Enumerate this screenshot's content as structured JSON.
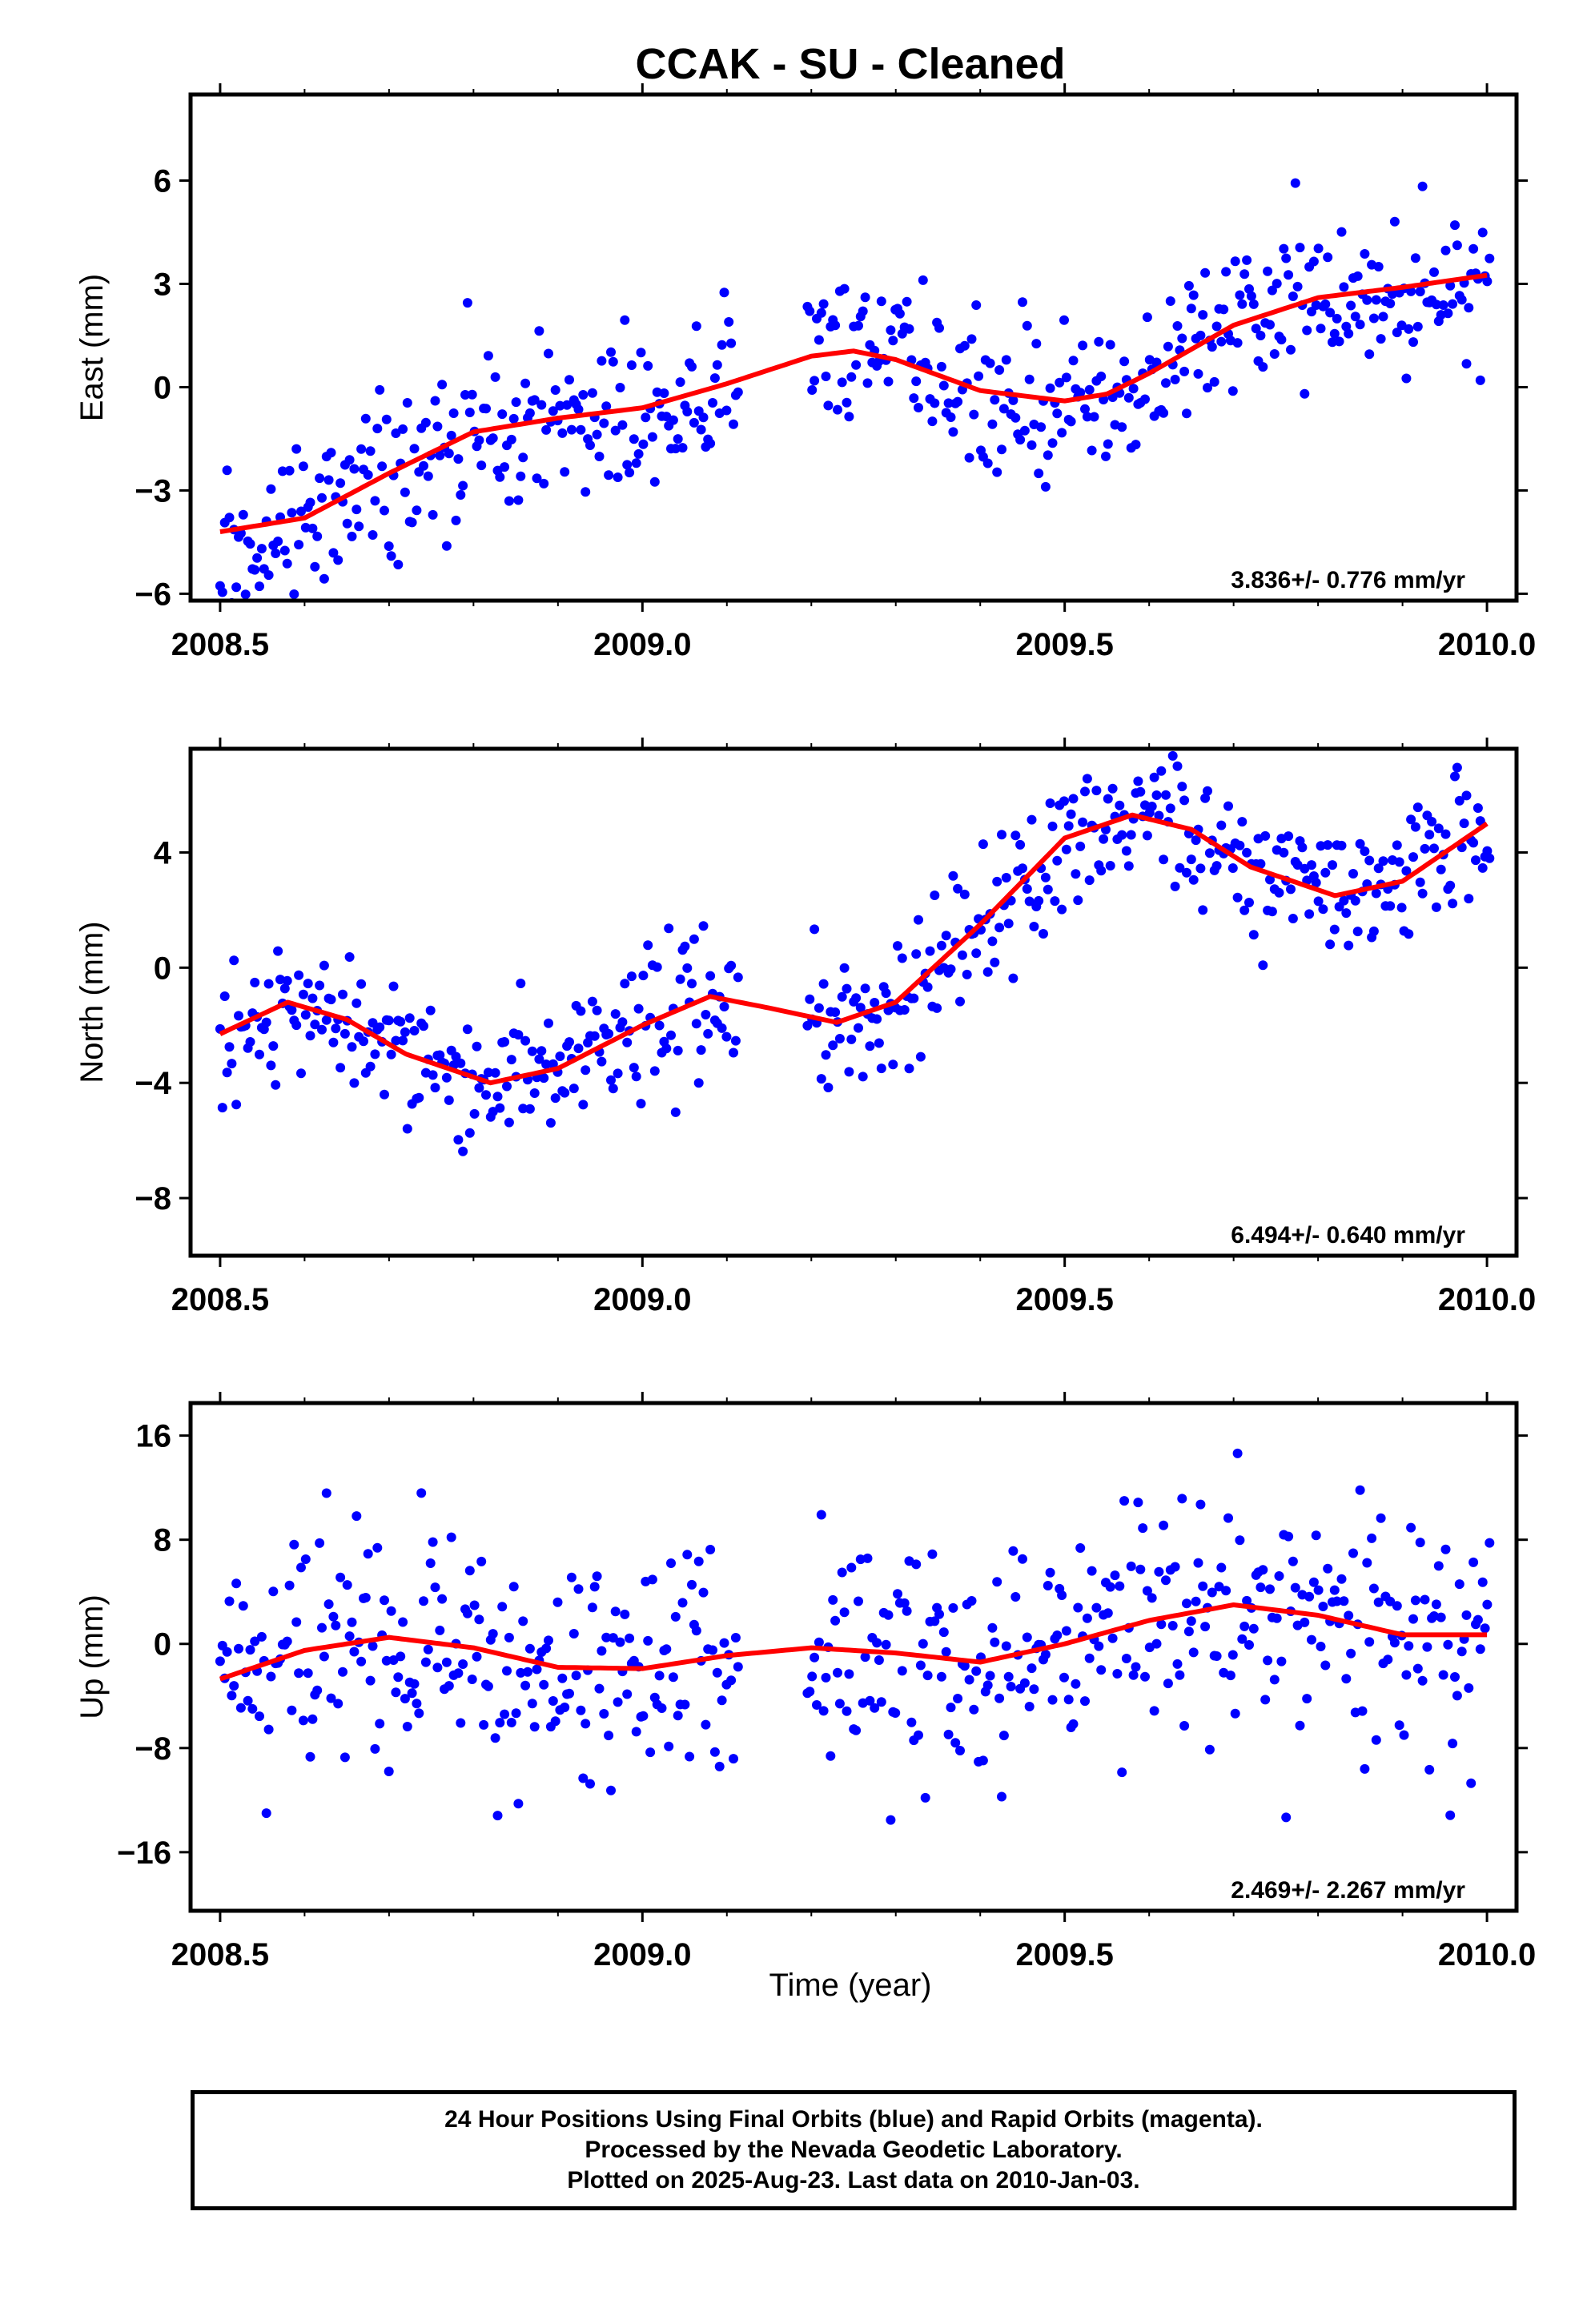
{
  "chart_data": {
    "title": "CCAK  - SU - Cleaned",
    "xlabel": "Time (year)",
    "x_ticks": [
      2008.5,
      2009.0,
      2009.5,
      2010.0
    ],
    "x_tick_labels": [
      "2008.5",
      "2009.0",
      "2009.5",
      "2010.0"
    ],
    "xlim": [
      2008.465,
      2010.035
    ],
    "colors": {
      "points": "#0000ff",
      "fit": "#ff0000",
      "frame": "#000000"
    },
    "panels": [
      {
        "name": "east",
        "type": "scatter",
        "ylabel": "East (mm)",
        "ylim": [
          -6.2,
          8.5
        ],
        "y_ticks": [
          -6,
          -3,
          0,
          3,
          6
        ],
        "y_tick_labels": [
          "−6",
          "−3",
          "0",
          "3",
          "6"
        ],
        "rate_text": "3.836+/- 0.776 mm/yr",
        "fit_line": {
          "x": [
            2008.5,
            2008.6,
            2008.7,
            2008.8,
            2008.9,
            2009.0,
            2009.1,
            2009.2,
            2009.25,
            2009.3,
            2009.4,
            2009.5,
            2009.55,
            2009.6,
            2009.7,
            2009.8,
            2009.9,
            2010.0
          ],
          "y": [
            -4.2,
            -3.8,
            -2.5,
            -1.3,
            -0.9,
            -0.6,
            0.1,
            0.9,
            1.05,
            0.8,
            -0.1,
            -0.4,
            -0.2,
            0.4,
            1.8,
            2.6,
            2.9,
            3.25
          ]
        }
      },
      {
        "name": "north",
        "type": "scatter",
        "ylabel": "North (mm)",
        "ylim": [
          -10,
          7.6
        ],
        "y_ticks": [
          -8,
          -4,
          0,
          4
        ],
        "y_tick_labels": [
          "−8",
          "−4",
          "0",
          "4"
        ],
        "rate_text": "6.494+/- 0.640 mm/yr",
        "fit_line": {
          "x": [
            2008.5,
            2008.58,
            2008.65,
            2008.72,
            2008.82,
            2008.9,
            2009.0,
            2009.08,
            2009.15,
            2009.23,
            2009.3,
            2009.4,
            2009.5,
            2009.58,
            2009.65,
            2009.72,
            2009.82,
            2009.9,
            2010.0
          ],
          "y": [
            -2.3,
            -1.2,
            -1.8,
            -3.0,
            -4.0,
            -3.5,
            -2.0,
            -1.0,
            -1.4,
            -1.9,
            -1.2,
            1.5,
            4.5,
            5.3,
            4.8,
            3.5,
            2.5,
            3.0,
            5.0
          ]
        }
      },
      {
        "name": "up",
        "type": "scatter",
        "ylabel": "Up (mm)",
        "ylim": [
          -20.5,
          18.5
        ],
        "y_ticks": [
          -16,
          -8,
          0,
          8,
          16
        ],
        "y_tick_labels": [
          "−16",
          "−8",
          "0",
          "8",
          "16"
        ],
        "rate_text": "2.469+/- 2.267 mm/yr",
        "fit_line": {
          "x": [
            2008.5,
            2008.6,
            2008.7,
            2008.8,
            2008.9,
            2009.0,
            2009.1,
            2009.2,
            2009.3,
            2009.4,
            2009.5,
            2009.6,
            2009.7,
            2009.8,
            2009.9,
            2010.0
          ],
          "y": [
            -2.7,
            -0.5,
            0.5,
            -0.3,
            -1.8,
            -1.9,
            -0.9,
            -0.3,
            -0.7,
            -1.4,
            0.0,
            1.8,
            3.0,
            2.2,
            0.7,
            0.7
          ]
        }
      }
    ]
  },
  "footer": {
    "line1": "24 Hour Positions Using Final Orbits (blue) and Rapid Orbits (magenta).",
    "line2": "Processed by the Nevada Geodetic Laboratory.",
    "line3": "Plotted on 2025-Aug-23. Last data on 2010-Jan-03."
  }
}
